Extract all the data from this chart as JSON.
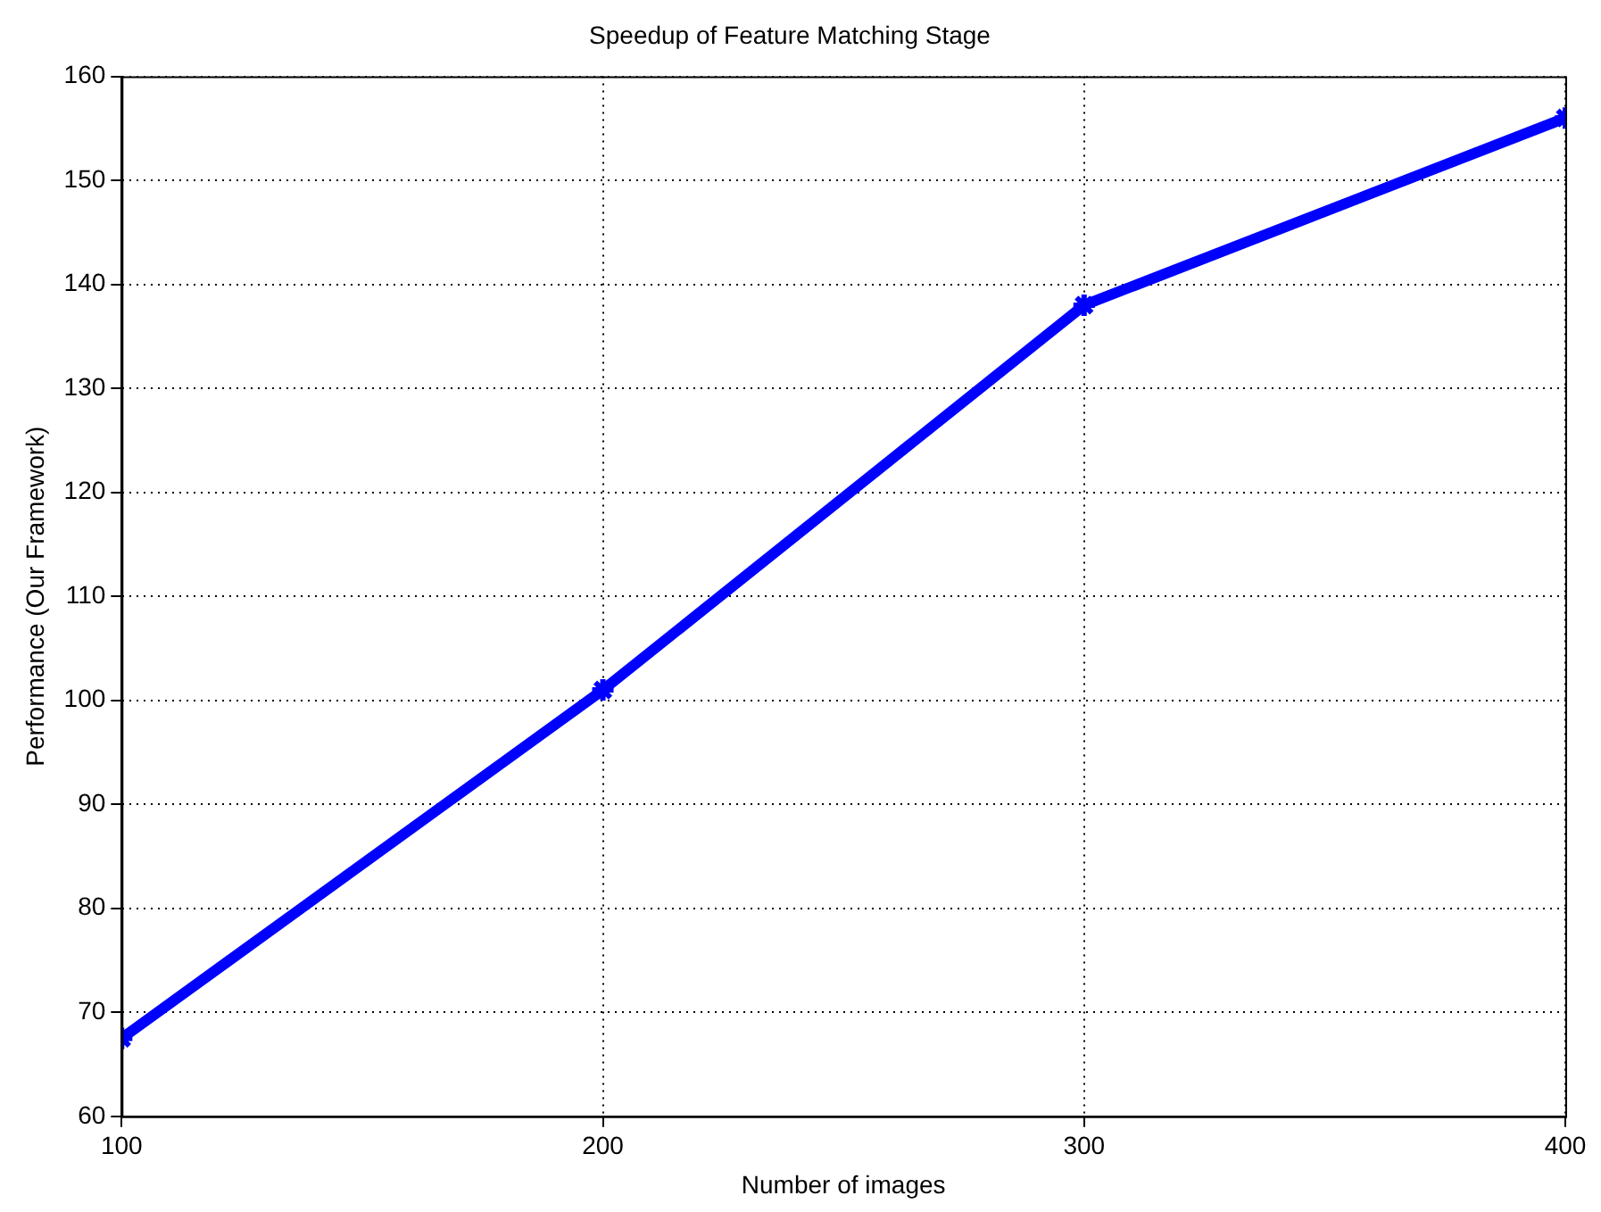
{
  "chart_data": {
    "type": "line",
    "title": "Speedup of Feature Matching Stage",
    "xlabel": "Number of images",
    "ylabel": "Performance (Our Framework)",
    "x": [
      100,
      200,
      300,
      400
    ],
    "series": [
      {
        "color": "#0000ff",
        "values": [
          67.5,
          101,
          138,
          156
        ]
      }
    ],
    "xlim": [
      100,
      400
    ],
    "xticks": [
      100,
      200,
      300,
      400
    ],
    "ylim": [
      60,
      160
    ],
    "yticks": [
      60,
      70,
      80,
      90,
      100,
      110,
      120,
      130,
      140,
      150,
      160
    ],
    "grid": true,
    "marker": "cross",
    "line_style": "solid",
    "legend": false
  }
}
